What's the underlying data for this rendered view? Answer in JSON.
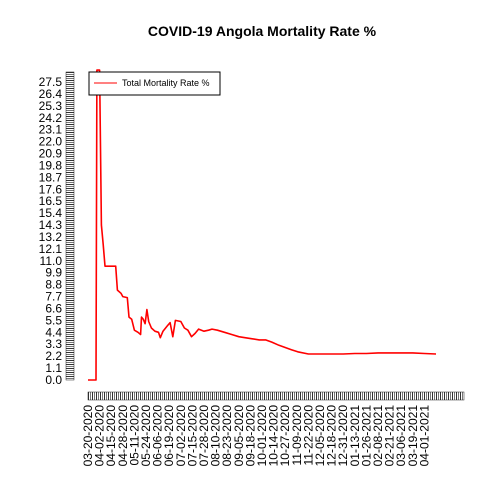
{
  "chart_data": {
    "type": "line",
    "title": "COVID-19 Angola Mortality Rate %",
    "xlabel": "",
    "ylabel": "",
    "yticks": [
      "0.0",
      "1.1",
      "2.2",
      "3.3",
      "4.4",
      "5.5",
      "6.6",
      "7.7",
      "8.8",
      "9.9",
      "11.0",
      "12.1",
      "13.2",
      "14.3",
      "15.4",
      "16.5",
      "17.6",
      "18.7",
      "19.8",
      "20.9",
      "22.0",
      "23.1",
      "24.2",
      "25.3",
      "26.4",
      "27.5"
    ],
    "ylim": [
      0,
      27.5
    ],
    "xticks": [
      "03-20-2020",
      "04-02-2020",
      "04-15-2020",
      "04-28-2020",
      "05-11-2020",
      "05-24-2020",
      "06-06-2020",
      "06-19-2020",
      "07-02-2020",
      "07-15-2020",
      "07-28-2020",
      "08-10-2020",
      "08-23-2020",
      "09-05-2020",
      "09-18-2020",
      "10-01-2020",
      "10-14-2020",
      "10-27-2020",
      "11-09-2020",
      "11-22-2020",
      "12-05-2020",
      "12-18-2020",
      "12-31-2020",
      "01-13-2021",
      "01-26-2021",
      "02-08-2021",
      "02-21-2021",
      "03-06-2021",
      "03-19-2021",
      "04-01-2021"
    ],
    "x_start_date": "03-20-2020",
    "x_end_date": "04-14-2021",
    "legend": {
      "position": "top-left",
      "entries": [
        "Total Mortality Rate %"
      ]
    },
    "series": [
      {
        "name": "Total Mortality Rate %",
        "color": "#ff0000",
        "points": [
          [
            "03-20-2020",
            0.0
          ],
          [
            "03-29-2020",
            0.0
          ],
          [
            "03-30-2020",
            28.6
          ],
          [
            "04-02-2020",
            28.6
          ],
          [
            "04-04-2020",
            14.3
          ],
          [
            "04-06-2020",
            12.5
          ],
          [
            "04-08-2020",
            10.5
          ],
          [
            "04-20-2020",
            10.5
          ],
          [
            "04-22-2020",
            8.3
          ],
          [
            "04-26-2020",
            8.0
          ],
          [
            "04-28-2020",
            7.7
          ],
          [
            "05-03-2020",
            7.6
          ],
          [
            "05-05-2020",
            5.8
          ],
          [
            "05-08-2020",
            5.6
          ],
          [
            "05-11-2020",
            4.6
          ],
          [
            "05-15-2020",
            4.4
          ],
          [
            "05-18-2020",
            4.2
          ],
          [
            "05-19-2020",
            5.8
          ],
          [
            "05-21-2020",
            5.6
          ],
          [
            "05-23-2020",
            5.2
          ],
          [
            "05-25-2020",
            6.5
          ],
          [
            "05-27-2020",
            5.4
          ],
          [
            "05-30-2020",
            4.8
          ],
          [
            "06-03-2020",
            4.5
          ],
          [
            "06-07-2020",
            4.4
          ],
          [
            "06-09-2020",
            3.9
          ],
          [
            "06-12-2020",
            4.5
          ],
          [
            "06-17-2020",
            5.0
          ],
          [
            "06-20-2020",
            5.3
          ],
          [
            "06-23-2020",
            4.0
          ],
          [
            "06-26-2020",
            5.5
          ],
          [
            "07-02-2020",
            5.4
          ],
          [
            "07-06-2020",
            4.8
          ],
          [
            "07-10-2020",
            4.6
          ],
          [
            "07-14-2020",
            4.0
          ],
          [
            "07-18-2020",
            4.3
          ],
          [
            "07-22-2020",
            4.7
          ],
          [
            "07-28-2020",
            4.5
          ],
          [
            "08-02-2020",
            4.6
          ],
          [
            "08-06-2020",
            4.7
          ],
          [
            "08-12-2020",
            4.6
          ],
          [
            "08-20-2020",
            4.4
          ],
          [
            "08-28-2020",
            4.2
          ],
          [
            "09-05-2020",
            4.0
          ],
          [
            "09-12-2020",
            3.9
          ],
          [
            "09-20-2020",
            3.8
          ],
          [
            "09-28-2020",
            3.7
          ],
          [
            "10-05-2020",
            3.7
          ],
          [
            "10-12-2020",
            3.5
          ],
          [
            "10-20-2020",
            3.2
          ],
          [
            "10-27-2020",
            3.0
          ],
          [
            "11-03-2020",
            2.8
          ],
          [
            "11-10-2020",
            2.6
          ],
          [
            "11-22-2020",
            2.4
          ],
          [
            "12-05-2020",
            2.4
          ],
          [
            "12-18-2020",
            2.4
          ],
          [
            "12-31-2020",
            2.4
          ],
          [
            "01-13-2021",
            2.45
          ],
          [
            "01-26-2021",
            2.45
          ],
          [
            "02-08-2021",
            2.5
          ],
          [
            "02-21-2021",
            2.5
          ],
          [
            "03-06-2021",
            2.5
          ],
          [
            "03-19-2021",
            2.5
          ],
          [
            "04-01-2021",
            2.45
          ],
          [
            "04-14-2021",
            2.4
          ]
        ]
      }
    ]
  }
}
